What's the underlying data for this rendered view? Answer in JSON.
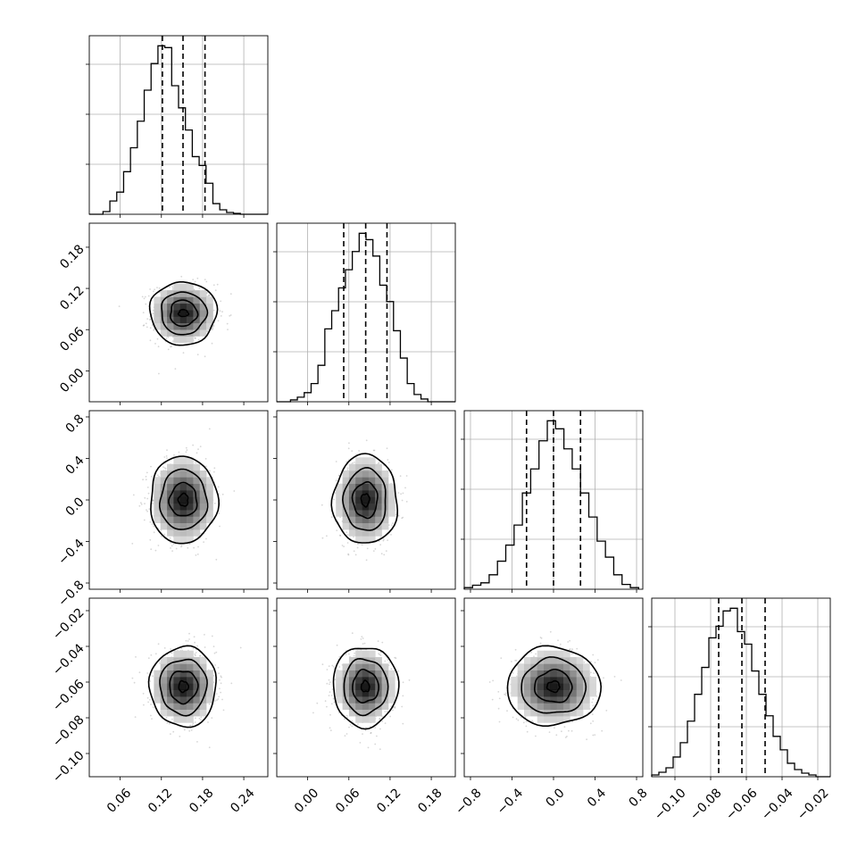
{
  "chart_data": {
    "type": "corner",
    "grid": true,
    "colors": {
      "line": "#000000",
      "grid": "#b0b0b0",
      "density_dark": "#1a1a1a",
      "points": "#8c8c8c"
    },
    "parameters": [
      {
        "range": [
          0.015,
          0.275
        ],
        "ticks": [
          "0.06",
          "0.12",
          "0.18",
          "0.24"
        ],
        "quantiles": [
          0.1215,
          0.1515,
          0.1835
        ],
        "hist": {
          "edges": [
            0.015,
            0.025,
            0.035,
            0.045,
            0.055,
            0.065,
            0.075,
            0.085,
            0.095,
            0.105,
            0.115,
            0.125,
            0.135,
            0.145,
            0.155,
            0.165,
            0.175,
            0.185,
            0.195,
            0.205,
            0.215,
            0.225,
            0.235,
            0.245,
            0.255,
            0.265,
            0.275
          ],
          "counts": [
            0,
            0,
            3,
            15,
            25,
            48,
            75,
            105,
            140,
            170,
            190,
            188,
            145,
            120,
            95,
            65,
            55,
            35,
            12,
            5,
            2,
            1,
            0,
            0,
            0,
            0
          ]
        }
      },
      {
        "range": [
          -0.045,
          0.215
        ],
        "ticks": [
          "0.00",
          "0.06",
          "0.12",
          "0.18"
        ],
        "quantiles": [
          0.0525,
          0.0845,
          0.1155
        ],
        "hist": {
          "edges": [
            -0.045,
            -0.035,
            -0.025,
            -0.015,
            -0.005,
            0.005,
            0.015,
            0.025,
            0.035,
            0.045,
            0.055,
            0.065,
            0.075,
            0.085,
            0.095,
            0.105,
            0.115,
            0.125,
            0.135,
            0.145,
            0.155,
            0.165,
            0.175,
            0.185,
            0.195,
            0.205,
            0.215
          ],
          "counts": [
            0,
            0,
            2,
            5,
            10,
            20,
            40,
            80,
            100,
            125,
            145,
            165,
            185,
            178,
            160,
            128,
            110,
            78,
            48,
            20,
            8,
            3,
            0,
            0,
            0,
            0
          ]
        }
      },
      {
        "range": [
          -0.86,
          0.86
        ],
        "ticks": [
          "−0.8",
          "−0.4",
          "0.0",
          "0.4",
          "0.8"
        ],
        "quantiles": [
          -0.26,
          0.0,
          0.26
        ],
        "hist": {
          "edges": [
            -0.86,
            -0.78,
            -0.7,
            -0.62,
            -0.54,
            -0.46,
            -0.38,
            -0.3,
            -0.22,
            -0.14,
            -0.06,
            0.02,
            0.1,
            0.18,
            0.26,
            0.34,
            0.42,
            0.5,
            0.58,
            0.66,
            0.74,
            0.82
          ],
          "counts": [
            2,
            5,
            8,
            18,
            35,
            55,
            80,
            120,
            150,
            185,
            210,
            200,
            175,
            150,
            120,
            90,
            60,
            40,
            18,
            6,
            2
          ]
        }
      },
      {
        "range": [
          -0.113,
          -0.013
        ],
        "ticks": [
          "−0.10",
          "−0.08",
          "−0.06",
          "−0.04",
          "−0.02"
        ],
        "quantiles": [
          -0.0755,
          -0.0625,
          -0.0495
        ],
        "hist": {
          "edges": [
            -0.113,
            -0.109,
            -0.105,
            -0.101,
            -0.097,
            -0.093,
            -0.089,
            -0.085,
            -0.081,
            -0.077,
            -0.073,
            -0.069,
            -0.065,
            -0.061,
            -0.057,
            -0.053,
            -0.049,
            -0.045,
            -0.041,
            -0.037,
            -0.033,
            -0.029,
            -0.025,
            -0.021,
            -0.017,
            -0.013
          ],
          "counts": [
            2,
            5,
            10,
            22,
            38,
            62,
            92,
            122,
            155,
            168,
            185,
            188,
            162,
            148,
            118,
            92,
            68,
            45,
            30,
            15,
            8,
            4,
            2,
            0,
            0
          ]
        }
      }
    ],
    "pairs": [
      {
        "row": 1,
        "col": 0,
        "center": [
          0.152,
          0.084
        ],
        "spread": [
          0.022,
          0.02
        ],
        "contours": [
          {
            "radius": [
              0.0485,
              0.046
            ],
            "wobble": 0.06
          },
          {
            "radius": [
              0.033,
              0.031
            ],
            "wobble": 0.07
          },
          {
            "radius": [
              0.0195,
              0.019
            ],
            "wobble": 0.09
          },
          {
            "radius": [
              0.007,
              0.005
            ],
            "wobble": 0.15
          }
        ]
      },
      {
        "row": 2,
        "col": 0,
        "center": [
          0.152,
          0.0
        ],
        "spread": [
          0.022,
          0.19
        ],
        "contours": [
          {
            "radius": [
              0.049,
              0.42
            ],
            "wobble": 0.06
          },
          {
            "radius": [
              0.034,
              0.29
            ],
            "wobble": 0.07
          },
          {
            "radius": [
              0.02,
              0.16
            ],
            "wobble": 0.09
          },
          {
            "radius": [
              0.007,
              0.06
            ],
            "wobble": 0.15
          }
        ]
      },
      {
        "row": 2,
        "col": 1,
        "center": [
          0.084,
          0.0
        ],
        "spread": [
          0.02,
          0.19
        ],
        "contours": [
          {
            "radius": [
              0.047,
              0.43
            ],
            "wobble": 0.07
          },
          {
            "radius": [
              0.031,
              0.3
            ],
            "wobble": 0.07
          },
          {
            "radius": [
              0.018,
              0.17
            ],
            "wobble": 0.09
          },
          {
            "radius": [
              0.006,
              0.06
            ],
            "wobble": 0.15
          }
        ]
      },
      {
        "row": 3,
        "col": 0,
        "center": [
          0.152,
          -0.0625
        ],
        "spread": [
          0.022,
          0.0095
        ],
        "contours": [
          {
            "radius": [
              0.0485,
              0.0225
            ],
            "wobble": 0.06
          },
          {
            "radius": [
              0.034,
              0.0155
            ],
            "wobble": 0.07
          },
          {
            "radius": [
              0.0205,
              0.009
            ],
            "wobble": 0.09
          },
          {
            "radius": [
              0.007,
              0.003
            ],
            "wobble": 0.15
          }
        ]
      },
      {
        "row": 3,
        "col": 1,
        "center": [
          0.084,
          -0.0625
        ],
        "spread": [
          0.02,
          0.0095
        ],
        "contours": [
          {
            "radius": [
              0.0475,
              0.0225
            ],
            "wobble": 0.06
          },
          {
            "radius": [
              0.032,
              0.0155
            ],
            "wobble": 0.07
          },
          {
            "radius": [
              0.019,
              0.009
            ],
            "wobble": 0.09
          },
          {
            "radius": [
              0.006,
              0.003
            ],
            "wobble": 0.15
          }
        ]
      },
      {
        "row": 3,
        "col": 2,
        "center": [
          0.0,
          -0.0625
        ],
        "spread": [
          0.19,
          0.0095
        ],
        "contours": [
          {
            "radius": [
              0.45,
              0.022
            ],
            "wobble": 0.06
          },
          {
            "radius": [
              0.31,
              0.0155
            ],
            "wobble": 0.07
          },
          {
            "radius": [
              0.18,
              0.009
            ],
            "wobble": 0.09
          },
          {
            "radius": [
              0.06,
              0.003
            ],
            "wobble": 0.15
          }
        ]
      }
    ]
  }
}
